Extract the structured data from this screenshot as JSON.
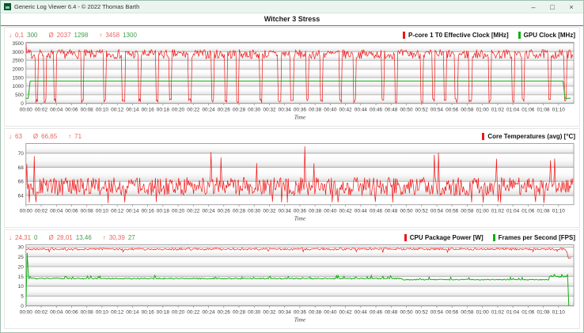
{
  "window": {
    "title": "Generic Log Viewer 6.4 - © 2022 Thomas Barth",
    "controls": {
      "minimize": "–",
      "maximize": "□",
      "close": "×"
    }
  },
  "header": {
    "title": "Witcher 3 Stress"
  },
  "colors": {
    "line_red": "#f01414",
    "line_green": "#0faf0f",
    "stat_red_text": "#e8655c",
    "stat_green_text": "#3f9e4d",
    "gridline": "#a6a6a6",
    "plot_border": "#8c8c8c"
  },
  "time_axis": {
    "label": "Time",
    "tick_step_min": 2,
    "t_end_min": 72,
    "ticks": [
      "00:00",
      "00:02",
      "00:04",
      "00:06",
      "00:08",
      "00:10",
      "00:12",
      "00:14",
      "00:16",
      "00:18",
      "00:20",
      "00:22",
      "00:24",
      "00:26",
      "00:28",
      "00:30",
      "00:32",
      "00:34",
      "00:36",
      "00:38",
      "00:40",
      "00:42",
      "00:44",
      "00:46",
      "00:48",
      "00:50",
      "00:52",
      "00:54",
      "00:56",
      "00:58",
      "01:00",
      "01:02",
      "01:04",
      "01:06",
      "01:08",
      "01:10"
    ]
  },
  "panels": [
    {
      "name": "clocks",
      "stats": [
        {
          "symbol": "↓",
          "red": "0,1",
          "green": "300"
        },
        {
          "symbol": "Ø",
          "red": "2037",
          "green": "1298"
        },
        {
          "symbol": "↑",
          "red": "3458",
          "green": "1300"
        }
      ],
      "legend": [
        {
          "label": "P-core 1 T0 Effective Clock [MHz]",
          "color": "#f01414"
        },
        {
          "label": "GPU Clock [MHz]",
          "color": "#0faf0f"
        }
      ]
    },
    {
      "name": "temperature",
      "stats": [
        {
          "symbol": "↓",
          "red": "63"
        },
        {
          "symbol": "Ø",
          "red": "66,65"
        },
        {
          "symbol": "↑",
          "red": "71"
        }
      ],
      "legend": [
        {
          "label": "Core Temperatures (avg) [°C]",
          "color": "#f01414"
        }
      ]
    },
    {
      "name": "power-fps",
      "stats": [
        {
          "symbol": "↓",
          "red": "24,31",
          "green": "0"
        },
        {
          "symbol": "Ø",
          "red": "28,01",
          "green": "13,46"
        },
        {
          "symbol": "↑",
          "red": "30,39",
          "green": "27"
        }
      ],
      "legend": [
        {
          "label": "CPU Package Power [W]",
          "color": "#f01414"
        },
        {
          "label": "Frames per Second [FPS]",
          "color": "#0faf0f"
        }
      ]
    }
  ],
  "chart_data": [
    {
      "type": "line",
      "title": "P-core 1 T0 Effective Clock / GPU Clock",
      "xlabel": "Time",
      "x_range_min": [
        0,
        72
      ],
      "y": {
        "min": 0,
        "max": 3560,
        "gridlines": [
          0,
          500,
          1000,
          1500,
          2000,
          2500,
          3000,
          3500
        ],
        "labels": [
          "0",
          "500",
          "1000",
          "1500",
          "2000",
          "2500",
          "3000",
          "3500"
        ]
      },
      "series": [
        {
          "name": "P-core 1 T0 Effective Clock [MHz]",
          "color": "#f01414",
          "min": 0.1,
          "avg": 2037,
          "max": 3458,
          "gen": "noisy_dips",
          "seed": 7,
          "pattern": {
            "n": 660,
            "t_end": 72,
            "base": 2870,
            "noise": 270,
            "first": 3458,
            "dip_low": 20,
            "dip_low_var": 260,
            "dip_half_width": 0.18,
            "first_dip": 1.4,
            "dip_gap_min": 1.1,
            "dip_gap_var": 2.6,
            "extra_dips": [
              70.9
            ]
          }
        },
        {
          "name": "GPU Clock [MHz]",
          "color": "#0faf0f",
          "min": 300,
          "avg": 1298,
          "max": 1300,
          "gen": "points",
          "pattern": {
            "points": [
              [
                0,
                300
              ],
              [
                0.3,
                300
              ],
              [
                0.55,
                1300
              ],
              [
                70.6,
                1300
              ],
              [
                70.85,
                300
              ],
              [
                71.6,
                300
              ]
            ]
          }
        }
      ]
    },
    {
      "type": "line",
      "title": "Core Temperatures (avg)",
      "xlabel": "Time",
      "x_range_min": [
        0,
        72
      ],
      "y": {
        "min": 62.7,
        "max": 71.4,
        "gridlines": [
          64,
          66,
          68,
          70
        ],
        "labels": [
          "64",
          "66",
          "68",
          "70"
        ]
      },
      "series": [
        {
          "name": "Core Temperatures (avg) [°C]",
          "color": "#f01414",
          "min": 63,
          "avg": 66.65,
          "max": 71,
          "gen": "noisy_spikes",
          "seed": 13,
          "pattern": {
            "n": 660,
            "t_end": 72,
            "lo": 64.0,
            "hi": 66.6,
            "low_prob": 0.025,
            "low_val": 63.2,
            "spike_prob": 0.012,
            "spike_lo": 68.3,
            "spike_hi": 70.2,
            "forced": [
              [
                0.4,
                63.0
              ],
              [
                1.1,
                69.6
              ],
              [
                24.3,
                70.2
              ],
              [
                36.6,
                71.0
              ],
              [
                54.2,
                70.1
              ]
            ]
          }
        }
      ]
    },
    {
      "type": "line",
      "title": "CPU Package Power / Frames per Second",
      "xlabel": "Time",
      "x_range_min": [
        0,
        72
      ],
      "y": {
        "min": 0,
        "max": 31.2,
        "gridlines": [
          0,
          5,
          10,
          15,
          20,
          25,
          30
        ],
        "labels": [
          "0",
          "5",
          "10",
          "15",
          "20",
          "25",
          "30"
        ]
      },
      "series": [
        {
          "name": "CPU Package Power [W]",
          "color": "#f01414",
          "min": 24.31,
          "avg": 28.01,
          "max": 30.39,
          "gen": "noisy",
          "seed": 21,
          "pattern": {
            "n": 660,
            "t_end": 72,
            "pre": [],
            "segments": [
              {
                "from": 0,
                "to": 70.9,
                "base": 29.0,
                "noise": 0.55,
                "bump_prob": 0.03,
                "bump_amp": -1.2
              }
            ],
            "post": [
              [
                71.1,
                27.5
              ],
              [
                71.3,
                24.31
              ],
              [
                71.7,
                24.6
              ]
            ]
          }
        },
        {
          "name": "Frames per Second [FPS]",
          "color": "#0faf0f",
          "min": 0,
          "avg": 13.46,
          "max": 27,
          "gen": "noisy",
          "seed": 33,
          "pattern": {
            "n": 660,
            "t_end": 72,
            "pre": [
              [
                0,
                0
              ],
              [
                0.15,
                27
              ],
              [
                0.35,
                14.1
              ]
            ],
            "segments": [
              {
                "from": 0.45,
                "to": 49.5,
                "base": 14.0,
                "noise": 0.3,
                "bump_prob": 0.05,
                "bump_amp": 0.9
              },
              {
                "from": 49.5,
                "to": 68.8,
                "base": 13.4,
                "noise": 0.2,
                "bump_prob": 0.05,
                "bump_amp": 1.0
              },
              {
                "from": 68.8,
                "to": 71.0,
                "base": 15.0,
                "noise": 0.4,
                "bump_prob": 0.1,
                "bump_amp": 0.7
              }
            ],
            "post": [
              [
                71.2,
                15.9
              ],
              [
                71.35,
                0
              ]
            ]
          }
        }
      ]
    }
  ]
}
